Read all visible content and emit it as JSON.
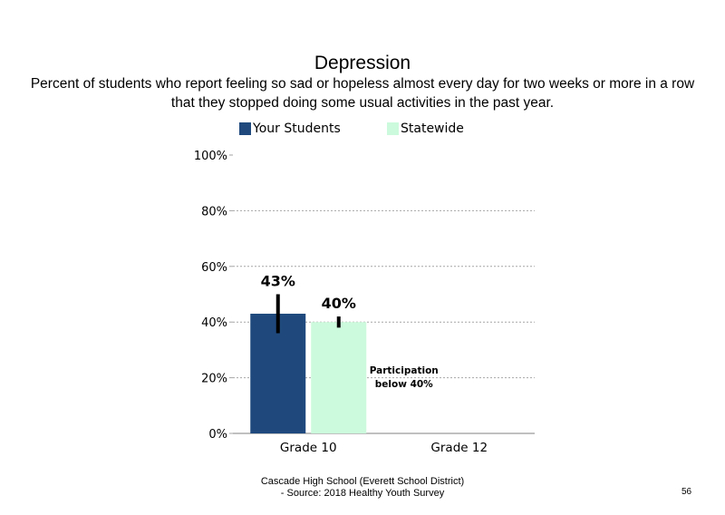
{
  "title": "Depression",
  "subtitle": "Percent of students who report feeling so sad or hopeless almost every day for two weeks or more in a row that they stopped doing some usual activities in the past year.",
  "footer": {
    "line1": "Cascade High School (Everett School District)",
    "line2": "- Source: 2018 Healthy  Youth Survey"
  },
  "page_number": "56",
  "chart_data": {
    "type": "bar",
    "categories": [
      "Grade 10",
      "Grade 12"
    ],
    "series": [
      {
        "name": "Your Students",
        "color": "#1f497d",
        "values": [
          43,
          null
        ],
        "labels": [
          "43%",
          ""
        ],
        "error": [
          [
            36,
            50
          ],
          null
        ]
      },
      {
        "name": "Statewide",
        "color": "#ccfadc",
        "values": [
          40,
          null
        ],
        "labels": [
          "40%",
          ""
        ],
        "error": [
          [
            38,
            42
          ],
          null
        ]
      }
    ],
    "ylim": [
      0,
      100
    ],
    "yticks": [
      0,
      20,
      40,
      60,
      80,
      100
    ],
    "ytick_labels": [
      "0%",
      "20%",
      "40%",
      "60%",
      "80%",
      "100%"
    ],
    "grid": true,
    "legend_position": "top",
    "annotation": {
      "category": "Grade 12",
      "lines": [
        "Participation",
        "below 40%"
      ]
    }
  }
}
